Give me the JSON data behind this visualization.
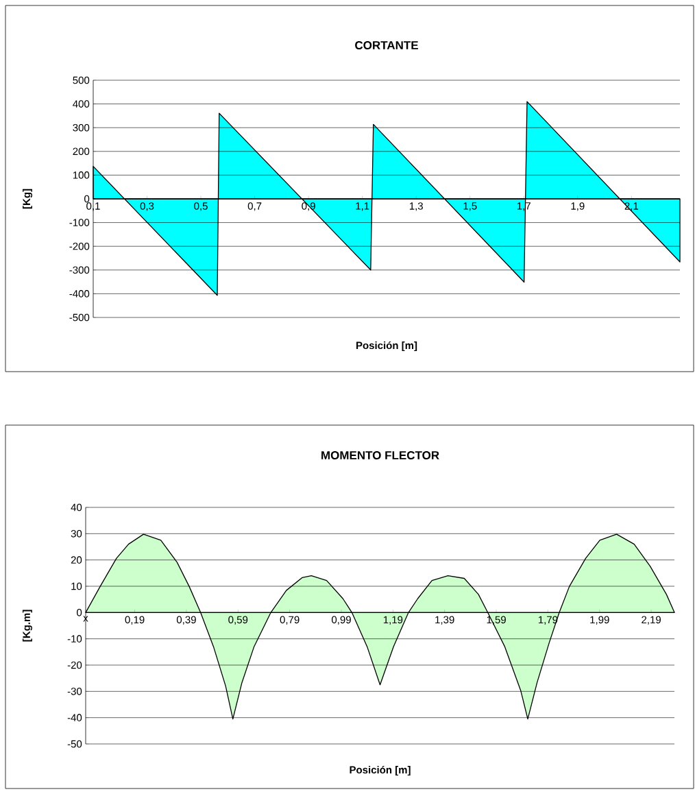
{
  "chart_data": [
    {
      "type": "area",
      "title": "CORTANTE",
      "xlabel": "Posición [m]",
      "ylabel": "[Kg]",
      "color": "#00ffff",
      "grid": "y",
      "x": [
        0.1,
        0.561,
        0.568,
        1.131,
        1.141,
        1.701,
        1.712,
        2.28
      ],
      "values": [
        137,
        -407,
        361,
        -300,
        314,
        -351,
        410,
        -266
      ],
      "xlim": [
        0.1,
        2.28
      ],
      "ylim": [
        -500,
        500
      ],
      "xticks": [
        {
          "value": 0.1,
          "label": "0,1"
        },
        {
          "value": 0.3,
          "label": "0,3"
        },
        {
          "value": 0.5,
          "label": "0,5"
        },
        {
          "value": 0.7,
          "label": "0,7"
        },
        {
          "value": 0.9,
          "label": "0,9"
        },
        {
          "value": 1.1,
          "label": "1,1"
        },
        {
          "value": 1.3,
          "label": "1,3"
        },
        {
          "value": 1.5,
          "label": "1,5"
        },
        {
          "value": 1.7,
          "label": "1,7"
        },
        {
          "value": 1.9,
          "label": "1,9"
        },
        {
          "value": 2.1,
          "label": "2,1"
        }
      ],
      "yticks": [
        -500,
        -400,
        -300,
        -200,
        -100,
        0,
        100,
        200,
        300,
        400,
        500
      ]
    },
    {
      "type": "area",
      "title": "MOMENTO FLECTOR",
      "xlabel": "Posición [m]",
      "ylabel": "[Kg.m]",
      "color": "#ccffcc",
      "grid": "y",
      "x": [
        0,
        0.056,
        0.119,
        0.166,
        0.224,
        0.291,
        0.354,
        0.401,
        0.445,
        0.495,
        0.542,
        0.57,
        0.605,
        0.652,
        0.717,
        0.777,
        0.839,
        0.874,
        0.933,
        0.996,
        1.031,
        1.09,
        1.14,
        1.192,
        1.25,
        1.286,
        1.341,
        1.403,
        1.466,
        1.521,
        1.557,
        1.623,
        1.685,
        1.712,
        1.748,
        1.795,
        1.834,
        1.873,
        1.936,
        1.991,
        2.056,
        2.124,
        2.186,
        2.249,
        2.28
      ],
      "values": [
        0,
        9.9,
        20.6,
        26,
        29.8,
        27.5,
        19.1,
        9.9,
        0,
        -13,
        -28,
        -40.5,
        -26.7,
        -13,
        0,
        8.4,
        13.3,
        14,
        12.2,
        5.3,
        0,
        -13,
        -27.5,
        -13,
        0,
        5.3,
        12.2,
        14,
        13,
        6.9,
        0,
        -13,
        -29.8,
        -40.5,
        -26.7,
        -11.5,
        0,
        9.9,
        20.6,
        27.5,
        29.8,
        26,
        17.6,
        6.9,
        0
      ],
      "xlim": [
        0,
        2.28
      ],
      "ylim": [
        -50,
        40
      ],
      "xticks": [
        {
          "value": 0,
          "label": "x"
        },
        {
          "value": 0.19,
          "label": "0,19"
        },
        {
          "value": 0.39,
          "label": "0,39"
        },
        {
          "value": 0.59,
          "label": "0,59"
        },
        {
          "value": 0.79,
          "label": "0,79"
        },
        {
          "value": 0.99,
          "label": "0,99"
        },
        {
          "value": 1.19,
          "label": "1,19"
        },
        {
          "value": 1.39,
          "label": "1,39"
        },
        {
          "value": 1.59,
          "label": "1,59"
        },
        {
          "value": 1.79,
          "label": "1,79"
        },
        {
          "value": 1.99,
          "label": "1,99"
        },
        {
          "value": 2.19,
          "label": "2,19"
        }
      ],
      "yticks": [
        -50,
        -40,
        -30,
        -20,
        -10,
        0,
        10,
        20,
        30,
        40
      ]
    }
  ]
}
